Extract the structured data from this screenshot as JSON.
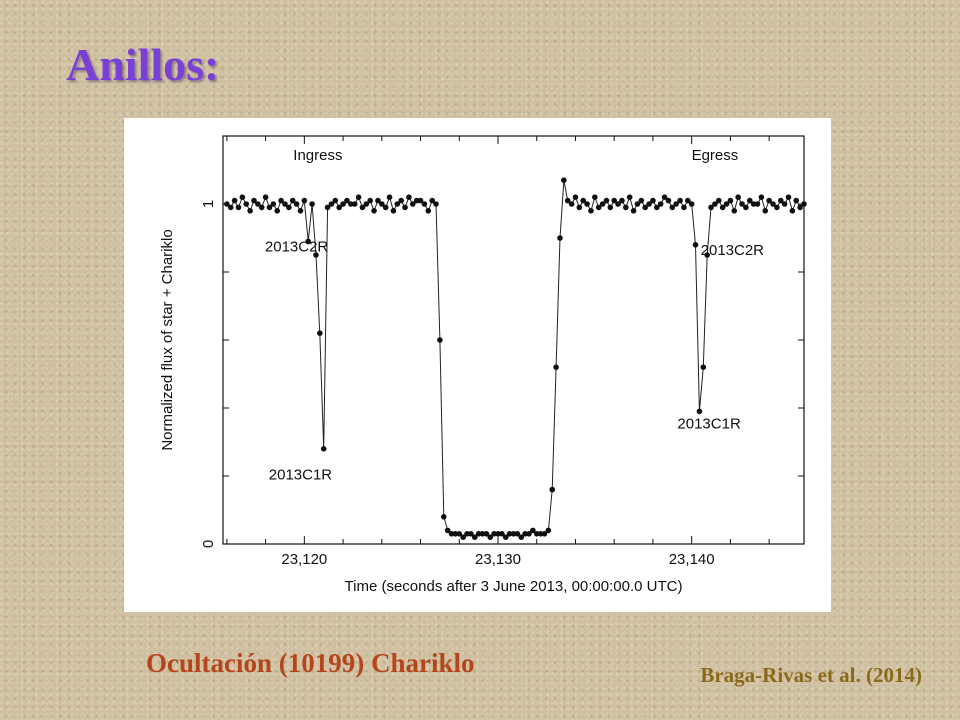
{
  "slide": {
    "title": "Anillos:",
    "caption": "Ocultación (10199) Chariklo",
    "citation": "Braga-Rivas et al. (2014)"
  },
  "colors": {
    "title": "#7a3fd6",
    "caption": "#b5451b",
    "citation": "#8a6a1a",
    "background": "#cfbf9f"
  },
  "chart_data": {
    "type": "line",
    "xlabel": "Time (seconds after 3 June 2013, 00:00:00.0 UTC)",
    "ylabel": "Normalized flux of star + Chariklo",
    "xlim": [
      23115.8,
      23145.8
    ],
    "ylim": [
      0,
      1.2
    ],
    "xticks": [
      23120,
      23130,
      23140
    ],
    "xtick_labels": [
      "23,120",
      "23,130",
      "23,140"
    ],
    "yticks": [
      0,
      1
    ],
    "ytick_labels": [
      "0",
      "1"
    ],
    "grid": false,
    "region_labels": [
      "Ingress",
      "Egress"
    ],
    "annotations": [
      {
        "text": "2013C2R",
        "x": 23119.6,
        "y": 0.86
      },
      {
        "text": "2013C1R",
        "x": 23119.8,
        "y": 0.19
      },
      {
        "text": "2013C2R",
        "x": 23142.1,
        "y": 0.85
      },
      {
        "text": "2013C1R",
        "x": 23140.9,
        "y": 0.34
      }
    ],
    "series": [
      {
        "x": [
          23116.0,
          23116.2,
          23116.4,
          23116.6,
          23116.8,
          23117.0,
          23117.2,
          23117.4,
          23117.6,
          23117.8,
          23118.0,
          23118.2,
          23118.4,
          23118.6,
          23118.8,
          23119.0,
          23119.2,
          23119.4,
          23119.6,
          23119.8,
          23120.0,
          23120.2,
          23120.4,
          23120.6,
          23120.8,
          23121.0,
          23121.2,
          23121.4,
          23121.6,
          23121.8,
          23122.0,
          23122.2,
          23122.4,
          23122.6,
          23122.8,
          23123.0,
          23123.2,
          23123.4,
          23123.6,
          23123.8,
          23124.0,
          23124.2,
          23124.4,
          23124.6,
          23124.8,
          23125.0,
          23125.2,
          23125.4,
          23125.6,
          23125.8,
          23126.0,
          23126.2,
          23126.4,
          23126.6,
          23126.8,
          23127.0,
          23127.2,
          23127.4,
          23127.6,
          23127.8,
          23128.0,
          23128.2,
          23128.4,
          23128.6,
          23128.8,
          23129.0,
          23129.2,
          23129.4,
          23129.6,
          23129.8,
          23130.0,
          23130.2,
          23130.4,
          23130.6,
          23130.8,
          23131.0,
          23131.2,
          23131.4,
          23131.6,
          23131.8,
          23132.0,
          23132.2,
          23132.4,
          23132.6,
          23132.8,
          23133.0,
          23133.2,
          23133.4,
          23133.6,
          23133.8,
          23134.0,
          23134.2,
          23134.4,
          23134.6,
          23134.8,
          23135.0,
          23135.2,
          23135.4,
          23135.6,
          23135.8,
          23136.0,
          23136.2,
          23136.4,
          23136.6,
          23136.8,
          23137.0,
          23137.2,
          23137.4,
          23137.6,
          23137.8,
          23138.0,
          23138.2,
          23138.4,
          23138.6,
          23138.8,
          23139.0,
          23139.2,
          23139.4,
          23139.6,
          23139.8,
          23140.0,
          23140.2,
          23140.4,
          23140.6,
          23140.8,
          23141.0,
          23141.2,
          23141.4,
          23141.6,
          23141.8,
          23142.0,
          23142.2,
          23142.4,
          23142.6,
          23142.8,
          23143.0,
          23143.2,
          23143.4,
          23143.6,
          23143.8,
          23144.0,
          23144.2,
          23144.4,
          23144.6,
          23144.8,
          23145.0,
          23145.2,
          23145.4,
          23145.6,
          23145.8
        ],
        "y": [
          1.0,
          0.99,
          1.01,
          0.99,
          1.02,
          1.0,
          0.98,
          1.01,
          1.0,
          0.99,
          1.02,
          0.99,
          1.0,
          0.98,
          1.01,
          1.0,
          0.99,
          1.01,
          1.0,
          0.98,
          1.01,
          0.89,
          1.0,
          0.85,
          0.62,
          0.28,
          0.99,
          1.0,
          1.01,
          0.99,
          1.0,
          1.01,
          1.0,
          1.0,
          1.02,
          0.99,
          1.0,
          1.01,
          0.98,
          1.01,
          1.0,
          0.99,
          1.02,
          0.98,
          1.0,
          1.01,
          0.99,
          1.02,
          1.0,
          1.01,
          1.01,
          1.0,
          0.98,
          1.01,
          1.0,
          0.6,
          0.08,
          0.04,
          0.03,
          0.03,
          0.03,
          0.02,
          0.03,
          0.03,
          0.02,
          0.03,
          0.03,
          0.03,
          0.02,
          0.03,
          0.03,
          0.03,
          0.02,
          0.03,
          0.03,
          0.03,
          0.02,
          0.03,
          0.03,
          0.04,
          0.03,
          0.03,
          0.03,
          0.04,
          0.16,
          0.52,
          0.9,
          1.07,
          1.01,
          1.0,
          1.02,
          0.99,
          1.01,
          1.0,
          0.98,
          1.02,
          0.99,
          1.0,
          1.01,
          0.99,
          1.01,
          1.0,
          1.01,
          0.99,
          1.02,
          0.98,
          1.0,
          1.01,
          0.99,
          1.0,
          1.01,
          0.99,
          1.0,
          1.02,
          1.01,
          0.99,
          1.0,
          1.01,
          0.99,
          1.01,
          1.0,
          0.88,
          0.39,
          0.52,
          0.85,
          0.99,
          1.0,
          1.01,
          0.99,
          1.0,
          1.01,
          0.98,
          1.02,
          1.0,
          0.99,
          1.01,
          1.0,
          1.0,
          1.02,
          0.98,
          1.01,
          1.0,
          0.99,
          1.01,
          1.0,
          1.02,
          0.98,
          1.01,
          0.99,
          1.0
        ]
      }
    ]
  }
}
